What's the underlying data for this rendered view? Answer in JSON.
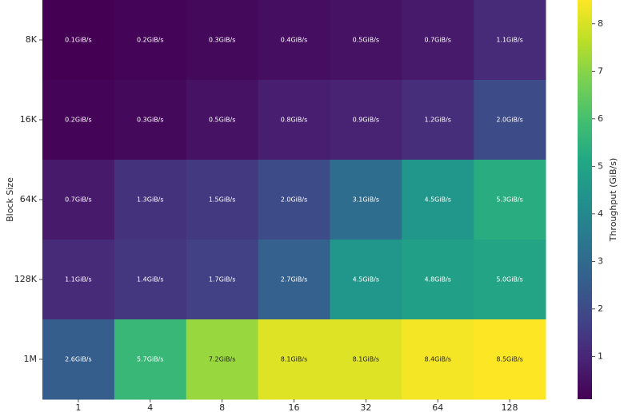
{
  "chart_data": {
    "type": "heatmap",
    "y_label": "Block Size",
    "colorbar_label": "Throughput (GiB/s)",
    "colormap": "viridis",
    "x_categories": [
      "1",
      "4",
      "8",
      "16",
      "32",
      "64",
      "128"
    ],
    "y_categories": [
      "8K",
      "16K",
      "64K",
      "128K",
      "1M"
    ],
    "values": [
      [
        0.1,
        0.2,
        0.3,
        0.4,
        0.5,
        0.7,
        1.1
      ],
      [
        0.2,
        0.3,
        0.5,
        0.8,
        0.9,
        1.2,
        2.0
      ],
      [
        0.7,
        1.3,
        1.5,
        2.0,
        3.1,
        4.5,
        5.3
      ],
      [
        1.1,
        1.4,
        1.7,
        2.7,
        4.5,
        4.8,
        5.0
      ],
      [
        2.6,
        5.7,
        7.2,
        8.1,
        8.1,
        8.4,
        8.5
      ]
    ],
    "value_labels": [
      [
        "0.1GiB/s",
        "0.2GiB/s",
        "0.3GiB/s",
        "0.4GiB/s",
        "0.5GiB/s",
        "0.7GiB/s",
        "1.1GiB/s"
      ],
      [
        "0.2GiB/s",
        "0.3GiB/s",
        "0.5GiB/s",
        "0.8GiB/s",
        "0.9GiB/s",
        "1.2GiB/s",
        "2.0GiB/s"
      ],
      [
        "0.7GiB/s",
        "1.3GiB/s",
        "1.5GiB/s",
        "2.0GiB/s",
        "3.1GiB/s",
        "4.5GiB/s",
        "5.3GiB/s"
      ],
      [
        "1.1GiB/s",
        "1.4GiB/s",
        "1.7GiB/s",
        "2.7GiB/s",
        "4.5GiB/s",
        "4.8GiB/s",
        "5.0GiB/s"
      ],
      [
        "2.6GiB/s",
        "5.7GiB/s",
        "7.2GiB/s",
        "8.1GiB/s",
        "8.1GiB/s",
        "8.4GiB/s",
        "8.5GiB/s"
      ]
    ],
    "clim": [
      0.1,
      8.5
    ],
    "cticks": [
      1,
      2,
      3,
      4,
      5,
      6,
      7,
      8
    ]
  }
}
